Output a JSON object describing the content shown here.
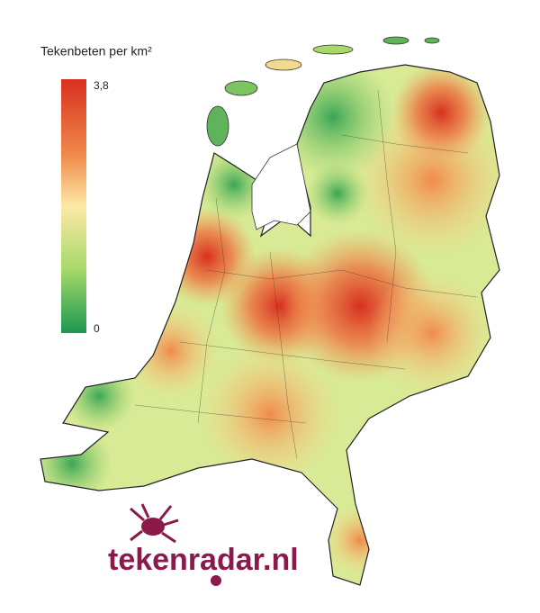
{
  "legend": {
    "title": "Tekenbeten per km²",
    "max_label": "3,8",
    "min_label": 0
  },
  "logo": "tekenradar.nl"
}
